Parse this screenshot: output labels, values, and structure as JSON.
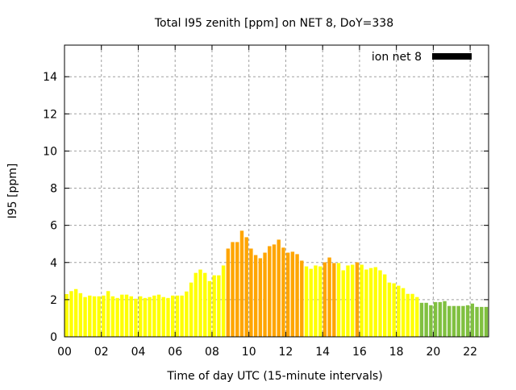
{
  "chart_data": {
    "type": "bar",
    "title": "Total I95 zenith [ppm] on NET 8, DoY=338",
    "xlabel": "Time of day UTC (15-minute intervals)",
    "ylabel": "I95 [ppm]",
    "xlim": [
      0,
      23
    ],
    "ylim": [
      0,
      15.7
    ],
    "grid": true,
    "legend": {
      "label": "ion net 8",
      "color": "#000000",
      "placement": "top-right"
    },
    "x_ticks": [
      "00",
      "02",
      "04",
      "06",
      "08",
      "10",
      "12",
      "14",
      "16",
      "18",
      "20",
      "22"
    ],
    "x_tick_values": [
      0,
      2,
      4,
      6,
      8,
      10,
      12,
      14,
      16,
      18,
      20,
      22
    ],
    "y_ticks": [
      "0",
      "2",
      "4",
      "6",
      "8",
      "10",
      "12",
      "14"
    ],
    "y_tick_values": [
      0,
      2,
      4,
      6,
      8,
      10,
      12,
      14
    ],
    "interval_hours": 0.25,
    "level_colors": {
      "low": "#ffff00",
      "medium": "#ffa500",
      "quiet": "#80c040"
    },
    "values": [
      2.3,
      2.46,
      2.57,
      2.35,
      2.14,
      2.22,
      2.18,
      2.18,
      2.22,
      2.46,
      2.18,
      2.09,
      2.27,
      2.27,
      2.18,
      2.05,
      2.18,
      2.09,
      2.14,
      2.22,
      2.27,
      2.14,
      2.09,
      2.22,
      2.22,
      2.22,
      2.44,
      2.92,
      3.44,
      3.62,
      3.44,
      3.0,
      3.31,
      3.31,
      3.84,
      4.75,
      5.1,
      5.1,
      5.71,
      5.36,
      4.75,
      4.4,
      4.23,
      4.53,
      4.88,
      4.97,
      5.23,
      4.8,
      4.53,
      4.58,
      4.45,
      4.1,
      3.79,
      3.66,
      3.84,
      3.79,
      4.01,
      4.27,
      3.97,
      3.97,
      3.58,
      3.84,
      3.88,
      4.01,
      3.88,
      3.62,
      3.7,
      3.75,
      3.58,
      3.36,
      2.92,
      2.88,
      2.75,
      2.62,
      2.31,
      2.31,
      2.14,
      1.83,
      1.83,
      1.7,
      1.87,
      1.87,
      1.92,
      1.66,
      1.66,
      1.66,
      1.66,
      1.7,
      1.79,
      1.61,
      1.61,
      1.61
    ],
    "levels": [
      "low",
      "low",
      "low",
      "low",
      "low",
      "low",
      "low",
      "low",
      "low",
      "low",
      "low",
      "low",
      "low",
      "low",
      "low",
      "low",
      "low",
      "low",
      "low",
      "low",
      "low",
      "low",
      "low",
      "low",
      "low",
      "low",
      "low",
      "low",
      "low",
      "low",
      "low",
      "low",
      "low",
      "low",
      "low",
      "medium",
      "medium",
      "medium",
      "medium",
      "medium",
      "medium",
      "medium",
      "medium",
      "medium",
      "medium",
      "medium",
      "medium",
      "medium",
      "medium",
      "medium",
      "medium",
      "medium",
      "low",
      "low",
      "low",
      "low",
      "medium",
      "medium",
      "medium",
      "low",
      "low",
      "low",
      "low",
      "medium",
      "low",
      "low",
      "low",
      "low",
      "low",
      "low",
      "low",
      "low",
      "low",
      "low",
      "low",
      "low",
      "low",
      "quiet",
      "quiet",
      "quiet",
      "quiet",
      "quiet",
      "quiet",
      "quiet",
      "quiet",
      "quiet",
      "quiet",
      "quiet",
      "quiet",
      "quiet",
      "quiet",
      "quiet"
    ]
  }
}
